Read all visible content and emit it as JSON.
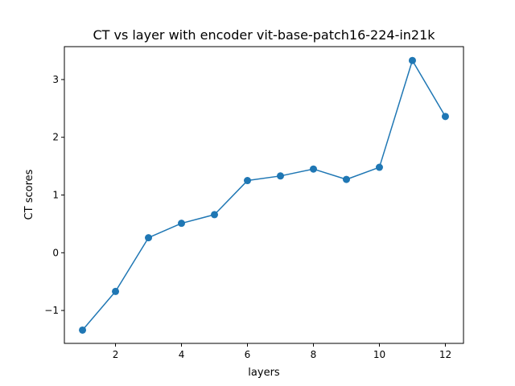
{
  "chart_data": {
    "type": "line",
    "title": "CT vs layer with encoder vit-base-patch16-224-in21k",
    "xlabel": "layers",
    "ylabel": "CT scores",
    "x": [
      1,
      2,
      3,
      4,
      5,
      6,
      7,
      8,
      9,
      10,
      11,
      12
    ],
    "series": [
      {
        "values": [
          -1.34,
          -0.67,
          0.26,
          0.51,
          0.66,
          1.25,
          1.33,
          1.45,
          1.27,
          1.48,
          3.33,
          2.36
        ],
        "color": "#1f77b4"
      }
    ],
    "xlim": [
      0.45,
      12.55
    ],
    "ylim": [
      -1.57,
      3.57
    ],
    "xticks": [
      2,
      4,
      6,
      8,
      10,
      12
    ],
    "yticks": [
      -1,
      0,
      1,
      2,
      3
    ],
    "xtick_labels": [
      "2",
      "4",
      "6",
      "8",
      "10",
      "12"
    ],
    "ytick_labels": [
      "−1",
      "0",
      "1",
      "2",
      "3"
    ],
    "grid": false,
    "markers": true
  }
}
